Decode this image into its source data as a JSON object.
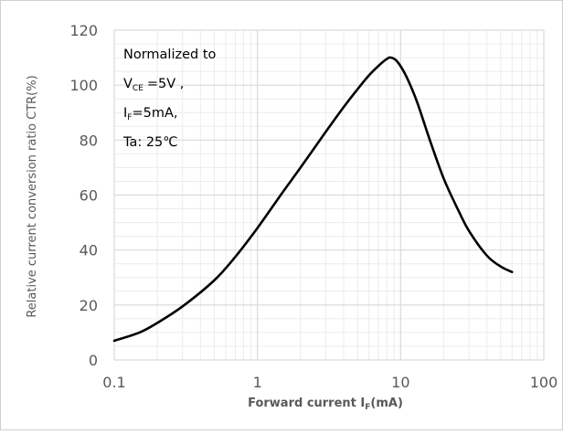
{
  "chart_data": {
    "type": "line",
    "xscale": "log",
    "xlim": [
      0.1,
      100
    ],
    "ylim": [
      0,
      120
    ],
    "grid": true,
    "x_ticks": [
      0.1,
      1,
      10,
      100
    ],
    "x_tick_labels": [
      "0.1",
      "1",
      "10",
      "100"
    ],
    "y_ticks": [
      0,
      20,
      40,
      60,
      80,
      100,
      120
    ],
    "y_tick_labels": [
      "0",
      "20",
      "40",
      "60",
      "80",
      "100",
      "120"
    ],
    "xlabel": {
      "main": "Forward current I",
      "sub": "F",
      "tail": "(mA)"
    },
    "ylabel": "Relative current conversion ratio CTR(%)",
    "annotation": {
      "line1": "Normalized to",
      "line2": {
        "main": "V",
        "sub": "CE",
        "tail": "=5V ,"
      },
      "line3": {
        "main": "I",
        "sub": "F",
        "tail": "=5mA,"
      },
      "line4": "Ta: 25℃"
    },
    "series": [
      {
        "x": [
          0.1,
          0.15,
          0.2,
          0.3,
          0.5,
          0.7,
          1,
          1.5,
          2,
          3,
          4,
          5,
          6,
          7,
          8,
          8.6,
          9.5,
          11,
          13,
          16,
          20,
          25,
          30,
          40,
          50,
          60
        ],
        "y": [
          7,
          10,
          13.5,
          19.5,
          29,
          37.5,
          48,
          61,
          70,
          83,
          92,
          98.5,
          103.5,
          107,
          109.5,
          110,
          108.5,
          103,
          94,
          80,
          66,
          55,
          47,
          38,
          34,
          32
        ]
      }
    ],
    "colors": {
      "line": "#000000",
      "grid_major": "#d9d9d9",
      "grid_minor": "#ececec",
      "text": "#595959"
    }
  }
}
